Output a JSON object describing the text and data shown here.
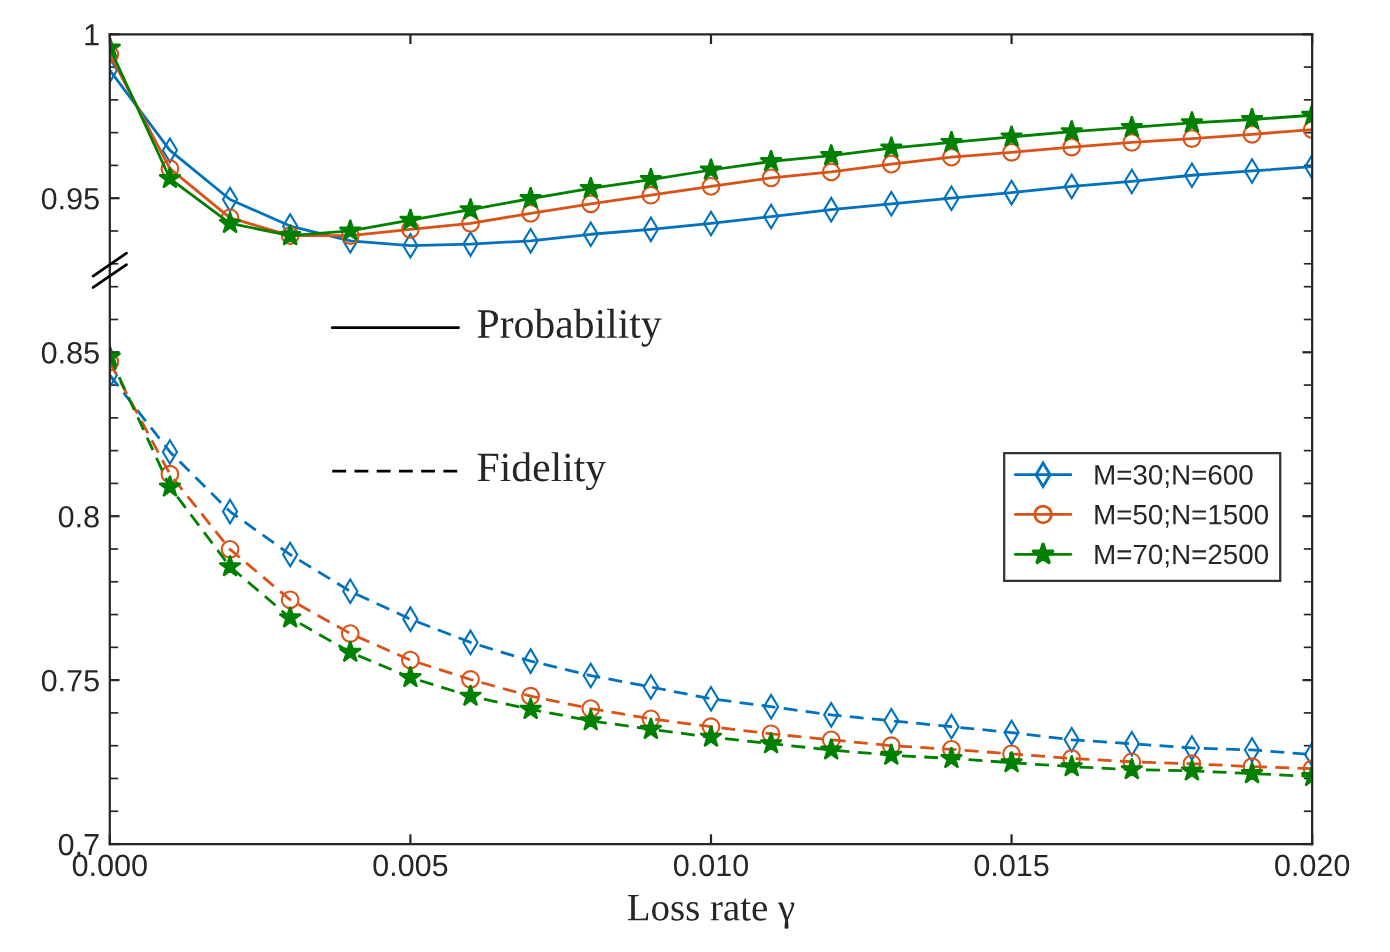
{
  "chart_data": [
    {
      "type": "line",
      "x": [
        0,
        0.001,
        0.002,
        0.003,
        0.004,
        0.005,
        0.006,
        0.007,
        0.008,
        0.009,
        0.01,
        0.011,
        0.012,
        0.013,
        0.014,
        0.015,
        0.016,
        0.017,
        0.018,
        0.019,
        0.02
      ],
      "xlim": [
        0,
        0.02
      ],
      "xticks": [
        0,
        0.005,
        0.01,
        0.015,
        0.02
      ],
      "ylim": [
        0.928,
        1.0
      ],
      "yticks": [
        0.95,
        1
      ],
      "tick_labels": "y",
      "line_style": "solid",
      "grid": false,
      "series": [
        {
          "color": "#0072bd",
          "marker": "diamond",
          "values": [
            0.989,
            0.9646,
            0.9496,
            0.9415,
            0.937,
            0.9355,
            0.936,
            0.937,
            0.939,
            0.9405,
            0.9423,
            0.9444,
            0.9465,
            0.9483,
            0.95,
            0.9517,
            0.9536,
            0.9551,
            0.957,
            0.9583,
            0.9596
          ]
        },
        {
          "color": "#d95319",
          "marker": "circle",
          "values": [
            0.9939,
            0.959,
            0.944,
            0.9386,
            0.9386,
            0.9405,
            0.9423,
            0.9454,
            0.9483,
            0.9509,
            0.9536,
            0.9562,
            0.958,
            0.9604,
            0.9625,
            0.964,
            0.9656,
            0.967,
            0.9682,
            0.9695,
            0.9709
          ]
        },
        {
          "color": "#008000",
          "marker": "star",
          "values": [
            0.9958,
            0.956,
            0.9423,
            0.9386,
            0.94,
            0.9433,
            0.9465,
            0.9499,
            0.953,
            0.9557,
            0.9586,
            0.9612,
            0.963,
            0.9653,
            0.967,
            0.9687,
            0.9703,
            0.9716,
            0.973,
            0.974,
            0.9753
          ]
        }
      ]
    },
    {
      "type": "line",
      "x": [
        0,
        0.001,
        0.002,
        0.003,
        0.004,
        0.005,
        0.006,
        0.007,
        0.008,
        0.009,
        0.01,
        0.011,
        0.012,
        0.013,
        0.014,
        0.015,
        0.016,
        0.017,
        0.018,
        0.019,
        0.02
      ],
      "xlim": [
        0,
        0.02
      ],
      "xticks": [
        {
          "value": 0,
          "label": "0.000"
        },
        {
          "value": 0.005,
          "label": "0.005"
        },
        {
          "value": 0.01,
          "label": "0.010"
        },
        {
          "value": 0.015,
          "label": "0.015"
        },
        {
          "value": 0.02,
          "label": "0.020"
        }
      ],
      "ylim": [
        0.7,
        0.875
      ],
      "yticks": [
        0.7,
        0.75,
        0.8,
        0.85
      ],
      "xlabel": "Loss rate γ",
      "line_style": "dashed",
      "grid": false,
      "legend": "right",
      "annotations": [
        "Probability",
        "Fidelity"
      ],
      "series": [
        {
          "name": "M=30;N=600",
          "color": "#0072bd",
          "marker": "diamond",
          "values": [
            0.843,
            0.8196,
            0.8014,
            0.7883,
            0.7771,
            0.7686,
            0.7615,
            0.7558,
            0.7514,
            0.7479,
            0.7443,
            0.7419,
            0.7394,
            0.7376,
            0.7358,
            0.734,
            0.7318,
            0.7306,
            0.7293,
            0.7287,
            0.7273
          ]
        },
        {
          "name": "M=50;N=1500",
          "color": "#d95319",
          "marker": "circle",
          "values": [
            0.847,
            0.8128,
            0.7899,
            0.7745,
            0.7642,
            0.7561,
            0.7502,
            0.7451,
            0.7413,
            0.7382,
            0.7358,
            0.7336,
            0.7318,
            0.73,
            0.7289,
            0.7275,
            0.7261,
            0.7251,
            0.7245,
            0.7236,
            0.723
          ]
        },
        {
          "name": "M=70;N=2500",
          "color": "#008000",
          "marker": "star",
          "values": [
            0.8486,
            0.8089,
            0.7846,
            0.769,
            0.7585,
            0.7508,
            0.7451,
            0.7411,
            0.7376,
            0.735,
            0.7326,
            0.7306,
            0.7287,
            0.7271,
            0.7261,
            0.7248,
            0.7236,
            0.7227,
            0.7223,
            0.7215,
            0.7206
          ]
        }
      ]
    }
  ]
}
